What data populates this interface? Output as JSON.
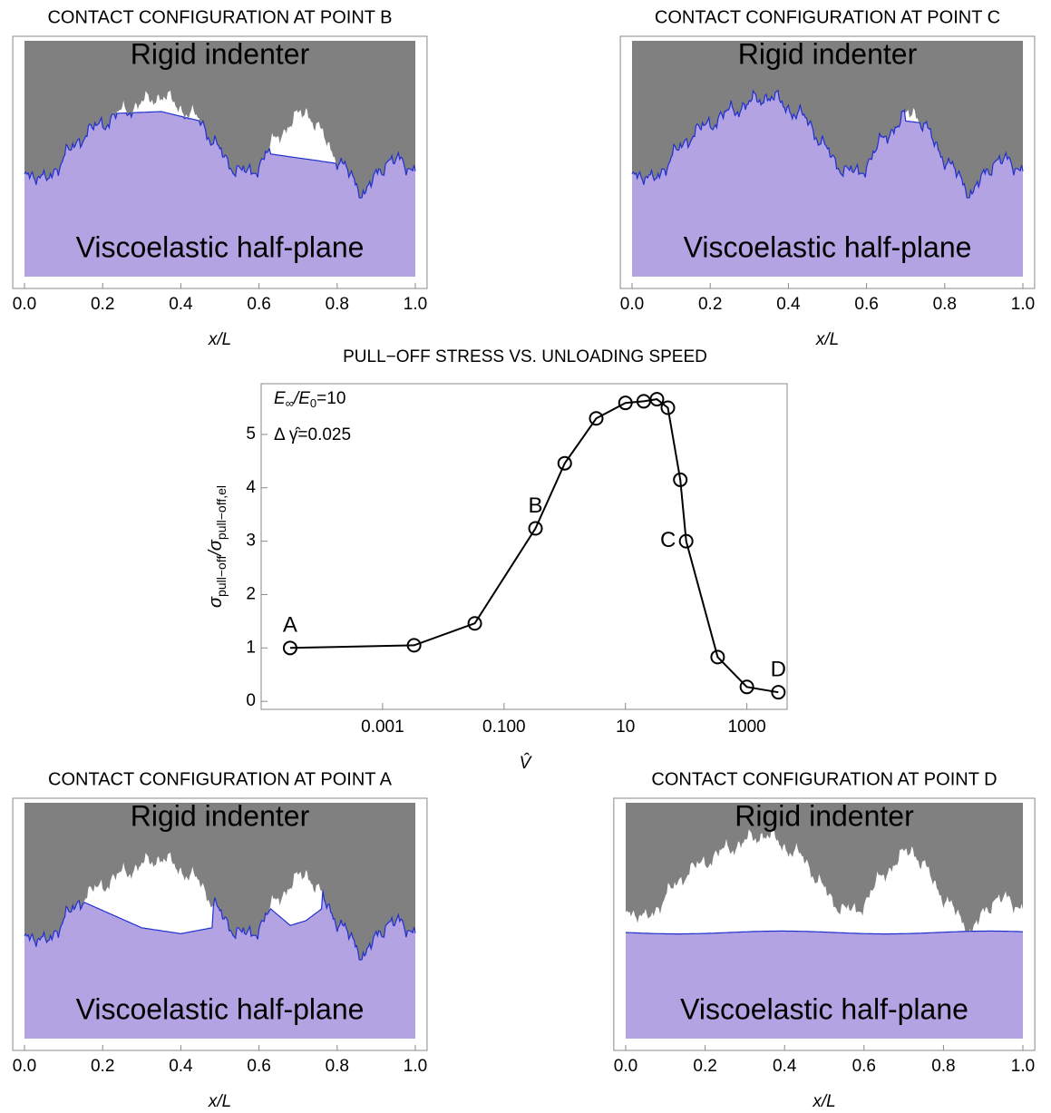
{
  "chart_data": [
    {
      "type": "profile",
      "title": "CONTACT CONFIGURATION AT POINT B",
      "indenter_label": "Rigid indenter",
      "substrate_label": "Viscoelastic half-plane",
      "xlabel": "x/L",
      "xlim": [
        -0.03,
        1.03
      ],
      "xticks": [
        {
          "value": 0,
          "label": "0.0"
        },
        0.2,
        0.4,
        0.6,
        0.8,
        {
          "value": 1,
          "label": "1.0"
        }
      ]
    },
    {
      "type": "profile",
      "title": "CONTACT CONFIGURATION AT POINT C",
      "indenter_label": "Rigid indenter",
      "substrate_label": "Viscoelastic half-plane",
      "xlabel": "x/L",
      "xlim": [
        -0.03,
        1.03
      ],
      "xticks": [
        {
          "value": 0,
          "label": "0.0"
        },
        0.2,
        0.4,
        0.6,
        0.8,
        {
          "value": 1,
          "label": "1.0"
        }
      ]
    },
    {
      "type": "line",
      "title": "PULL−OFF STRESS VS. UNLOADING SPEED",
      "xlabel": "V̂",
      "ylabel": [
        "σ",
        "pull−off",
        "/σ",
        "pull−off,el"
      ],
      "annotations": [
        [
          "E",
          "∞",
          "/E",
          "0",
          "=10"
        ],
        [
          "Δ γ̂=0.025"
        ]
      ],
      "xscale": "log",
      "xlim": [
        1e-05,
        4600
      ],
      "ylim": [
        -0.15,
        5.95
      ],
      "xticks": [
        0.001,
        {
          "value": 0.1,
          "label": "0.100"
        },
        10,
        1000
      ],
      "yticks": [
        0,
        1,
        2,
        3,
        4,
        5
      ],
      "color": "#000000",
      "x": [
        3e-05,
        0.0033,
        0.033,
        0.33,
        1,
        3.3,
        10,
        20,
        33,
        50,
        80,
        100,
        330,
        1000,
        3300
      ],
      "values": [
        1.0,
        1.05,
        1.46,
        3.24,
        4.46,
        5.3,
        5.59,
        5.62,
        5.66,
        5.5,
        4.15,
        3.0,
        0.83,
        0.27,
        0.17
      ],
      "point_labels": [
        "A",
        null,
        null,
        "B",
        null,
        null,
        null,
        null,
        null,
        null,
        null,
        "C",
        null,
        null,
        "D"
      ]
    },
    {
      "type": "profile",
      "title": "CONTACT CONFIGURATION AT POINT A",
      "indenter_label": "Rigid indenter",
      "substrate_label": "Viscoelastic half-plane",
      "xlabel": "x/L",
      "xlim": [
        -0.03,
        1.03
      ],
      "xticks": [
        {
          "value": 0,
          "label": "0.0"
        },
        0.2,
        0.4,
        0.6,
        0.8,
        {
          "value": 1,
          "label": "1.0"
        }
      ]
    },
    {
      "type": "profile",
      "title": "CONTACT CONFIGURATION AT POINT D",
      "indenter_label": "Rigid indenter",
      "substrate_label": "Viscoelastic half-plane",
      "xlabel": "x/L",
      "xlim": [
        -0.03,
        1.03
      ],
      "xticks": [
        {
          "value": 0,
          "label": "0.0"
        },
        0.2,
        0.4,
        0.6,
        0.8,
        {
          "value": 1,
          "label": "1.0"
        }
      ]
    }
  ]
}
